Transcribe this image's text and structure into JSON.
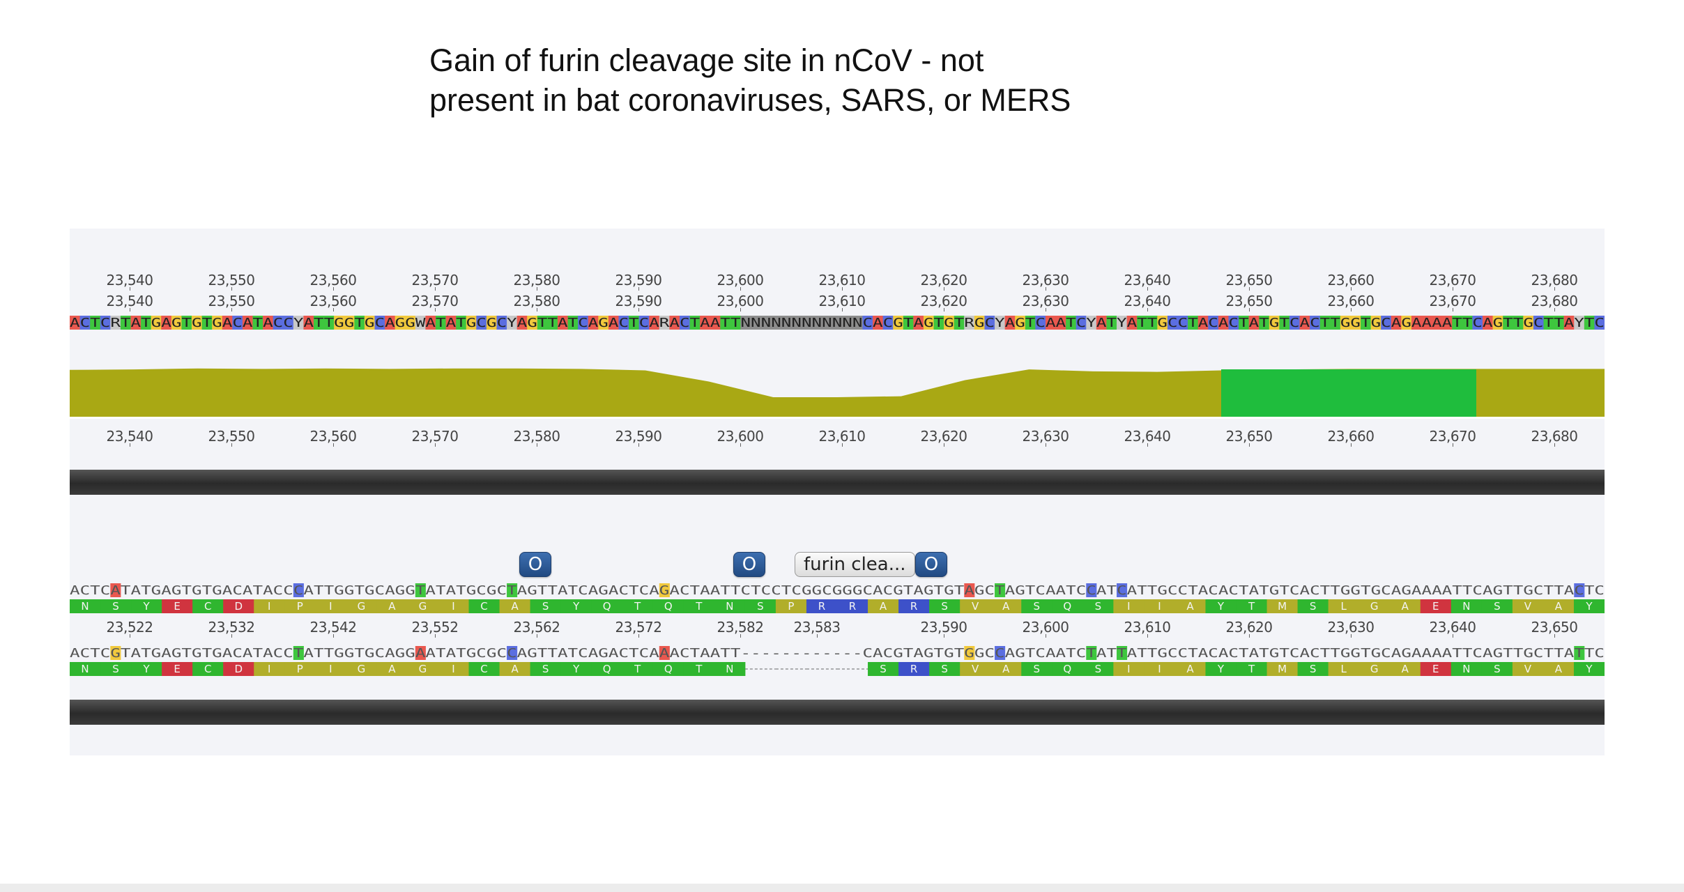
{
  "slide": {
    "title_line1": "Gain of furin cleavage site in nCoV - not",
    "title_line2": "present in bat coronaviruses, SARS, or MERS"
  },
  "viewer": {
    "ruler_top": [
      "23,540",
      "23,550",
      "23,560",
      "23,570",
      "23,580",
      "23,590",
      "23,600",
      "23,610",
      "23,620",
      "23,630",
      "23,640",
      "23,650",
      "23,660",
      "23,670",
      "23,680"
    ],
    "ruler_coverage": [
      "23,540",
      "23,550",
      "23,560",
      "23,570",
      "23,580",
      "23,590",
      "23,600",
      "23,610",
      "23,620",
      "23,630",
      "23,640",
      "23,650",
      "23,660",
      "23,670",
      "23,680"
    ],
    "ruler_reference": [
      "23,522",
      "23,532",
      "23,542",
      "23,552",
      "23,562",
      "23,572",
      "23,582",
      "23,583",
      "23,590",
      "23,600",
      "23,610",
      "23,620",
      "23,630",
      "23,640",
      "23,650"
    ],
    "consensus_seq": "ACTCRTATGAGTGTGACATACCYATTGGTGCAGGWATATGCGCYAGTTATCAGACTCARACTAATTNNNNNNNNNNNNCACGTAGTGTRGCYAGTCAATCYATYATTGCCTACACTATGTCACTTGGTGCAGAAAATTCAGTTGCTTAYTC",
    "ncov_seq": "ACTCATATGAGTGTGACATACCCATTGGTGCAGGTATATGCGCTAGTTATCAGACTCAGACTAATTCTCCTCGGCGGGCACGTAGTGTAGCTAGTCAATCCATCATTGCCTACACTATGTCACTTGGTGCAGAAAATTCAGTTGCTTACTC",
    "ncov_aa": [
      "N",
      "S",
      "Y",
      "E",
      "C",
      "D",
      "I",
      "P",
      "I",
      "G",
      "A",
      "G",
      "I",
      "C",
      "A",
      "S",
      "Y",
      "Q",
      "T",
      "Q",
      "T",
      "N",
      "S",
      "P",
      "R",
      "R",
      "A",
      "R",
      "S",
      "V",
      "A",
      "S",
      "Q",
      "S",
      "I",
      "I",
      "A",
      "Y",
      "T",
      "M",
      "S",
      "L",
      "G",
      "A",
      "E",
      "N",
      "S",
      "V",
      "A",
      "Y"
    ],
    "bat_seq": "ACTCGTATGAGTGTGACATACCTATTGGTGCAGGAATATGCGCCAGTTATCAGACTCAAACTAATT------------CACGTAGTGTGGCCAGTCAATCTATTATTGCCTACACTATGTCACTTGGTGCAGAAAATTCAGTTGCTTATTC",
    "bat_aa": [
      "N",
      "S",
      "Y",
      "E",
      "C",
      "D",
      "I",
      "P",
      "I",
      "G",
      "A",
      "G",
      "I",
      "C",
      "A",
      "S",
      "Y",
      "Q",
      "T",
      "Q",
      "T",
      "N",
      "-",
      "-",
      "-",
      "-",
      "S",
      "R",
      "S",
      "V",
      "A",
      "S",
      "Q",
      "S",
      "I",
      "I",
      "A",
      "Y",
      "T",
      "M",
      "S",
      "L",
      "G",
      "A",
      "E",
      "N",
      "S",
      "V",
      "A",
      "Y"
    ],
    "annotations": {
      "marker1": "O",
      "marker2": "O",
      "marker3": "O",
      "furin_label": "furin clea..."
    },
    "coverage_profile": [
      0.96,
      0.97,
      0.99,
      0.98,
      0.99,
      0.98,
      0.99,
      0.99,
      0.98,
      0.95,
      0.72,
      0.4,
      0.4,
      0.42,
      0.75,
      0.97,
      0.93,
      0.92,
      0.95,
      0.97,
      0.98,
      0.98,
      0.98,
      0.98,
      0.98
    ],
    "colors": {
      "A": "#e9584f",
      "C": "#5b6ee0",
      "G": "#f1c93d",
      "T": "#3ec63e",
      "N": "#8d8d8d",
      "ambiguous": "#c9c9c9",
      "coverage_fill": "#a9a814",
      "coverage_highlight": "#1fbd3d",
      "aa_green": "#2fb62f",
      "aa_olive": "#b1ae2a",
      "aa_red": "#d0343f",
      "aa_blue": "#3d51c9"
    }
  }
}
